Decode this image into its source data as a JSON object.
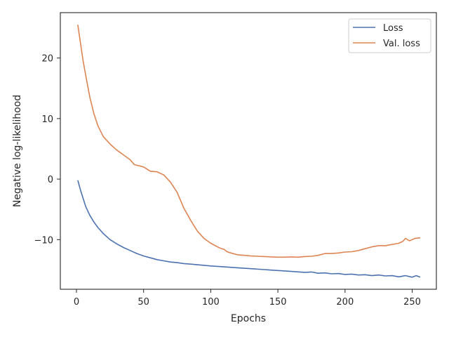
{
  "chart_data": {
    "type": "line",
    "title": "",
    "xlabel": "Epochs",
    "ylabel": "Negative log-likelihood",
    "xlim": [
      -12,
      268
    ],
    "ylim": [
      -18.2,
      27.5
    ],
    "xticks": [
      0,
      50,
      100,
      150,
      200,
      250
    ],
    "yticks": [
      -10,
      0,
      10,
      20
    ],
    "ytick_labels": [
      "−10",
      "0",
      "10",
      "20"
    ],
    "grid": false,
    "legend_position": "top-right",
    "series": [
      {
        "name": "Loss",
        "color": "#4c72b0",
        "x": [
          1,
          3,
          5,
          7,
          10,
          13,
          16,
          20,
          25,
          30,
          35,
          40,
          45,
          50,
          55,
          60,
          65,
          70,
          75,
          80,
          85,
          90,
          95,
          100,
          110,
          120,
          130,
          140,
          150,
          160,
          170,
          175,
          180,
          185,
          190,
          195,
          200,
          205,
          210,
          215,
          220,
          225,
          230,
          235,
          240,
          245,
          250,
          253,
          256
        ],
        "y": [
          -0.2,
          -1.8,
          -3.2,
          -4.6,
          -6.0,
          -7.1,
          -8.0,
          -9.0,
          -10.0,
          -10.7,
          -11.3,
          -11.8,
          -12.3,
          -12.7,
          -13.0,
          -13.3,
          -13.5,
          -13.7,
          -13.8,
          -13.95,
          -14.05,
          -14.15,
          -14.25,
          -14.35,
          -14.5,
          -14.65,
          -14.8,
          -14.95,
          -15.1,
          -15.25,
          -15.4,
          -15.35,
          -15.55,
          -15.5,
          -15.65,
          -15.6,
          -15.75,
          -15.7,
          -15.85,
          -15.8,
          -15.95,
          -15.85,
          -16.0,
          -15.95,
          -16.15,
          -15.95,
          -16.2,
          -15.95,
          -16.2
        ]
      },
      {
        "name": "Val. loss",
        "color": "#dd8452",
        "x": [
          1,
          3,
          5,
          7,
          10,
          13,
          16,
          20,
          25,
          30,
          35,
          40,
          43,
          50,
          55,
          60,
          65,
          70,
          75,
          80,
          85,
          90,
          95,
          100,
          105,
          108,
          110,
          112,
          115,
          120,
          125,
          130,
          135,
          140,
          145,
          150,
          155,
          160,
          165,
          170,
          175,
          180,
          185,
          190,
          195,
          200,
          205,
          210,
          215,
          220,
          225,
          230,
          235,
          240,
          243,
          245,
          248,
          250,
          252,
          256
        ],
        "y": [
          25.5,
          22.5,
          19.5,
          17.0,
          13.5,
          10.8,
          8.8,
          7.0,
          5.8,
          4.8,
          4.0,
          3.2,
          2.4,
          2.0,
          1.3,
          1.2,
          0.7,
          -0.5,
          -2.2,
          -4.8,
          -6.8,
          -8.6,
          -9.8,
          -10.6,
          -11.2,
          -11.5,
          -11.6,
          -12.0,
          -12.2,
          -12.5,
          -12.6,
          -12.7,
          -12.75,
          -12.8,
          -12.85,
          -12.9,
          -12.9,
          -12.85,
          -12.9,
          -12.8,
          -12.75,
          -12.6,
          -12.3,
          -12.3,
          -12.2,
          -12.05,
          -12.0,
          -11.8,
          -11.5,
          -11.2,
          -11.0,
          -11.0,
          -10.8,
          -10.6,
          -10.3,
          -9.8,
          -10.2,
          -10.0,
          -9.8,
          -9.7
        ]
      }
    ]
  }
}
